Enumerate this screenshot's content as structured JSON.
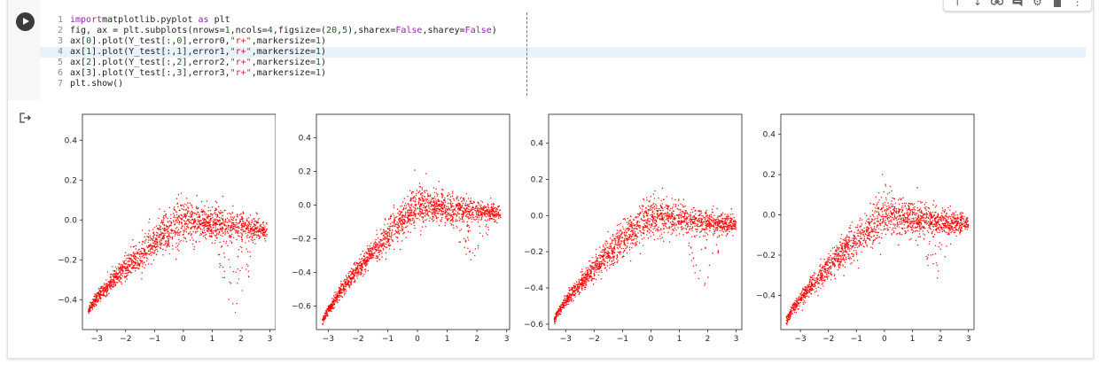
{
  "cell": {
    "code_lines": [
      {
        "n": "1",
        "parts": [
          [
            "kw",
            "import"
          ],
          [
            "",
            "matplotlib.pyplot "
          ],
          [
            "kw",
            "as"
          ],
          [
            "",
            " plt"
          ]
        ]
      },
      {
        "n": "2",
        "parts": [
          [
            "",
            "fig, ax = plt.subplots(nrows="
          ],
          [
            "num",
            "1"
          ],
          [
            "",
            ",ncols="
          ],
          [
            "num",
            "4"
          ],
          [
            "",
            ",figsize=("
          ],
          [
            "num",
            "20"
          ],
          [
            "",
            ","
          ],
          [
            "num",
            "5"
          ],
          [
            "",
            "),sharex="
          ],
          [
            "kw",
            "False"
          ],
          [
            "",
            ",sharey="
          ],
          [
            "kw",
            "False"
          ],
          [
            "",
            ")"
          ]
        ]
      },
      {
        "n": "3",
        "parts": [
          [
            "",
            "ax["
          ],
          [
            "num",
            "0"
          ],
          [
            "",
            "].plot(Y_test[:,"
          ],
          [
            "num",
            "0"
          ],
          [
            "",
            "],error0,"
          ],
          [
            "str",
            "\"r+\""
          ],
          [
            "",
            ",markersize="
          ],
          [
            "num",
            "1"
          ],
          [
            "",
            ")"
          ]
        ]
      },
      {
        "n": "4",
        "parts": [
          [
            "",
            "ax["
          ],
          [
            "num",
            "1"
          ],
          [
            "",
            "].plot(Y_test[:,"
          ],
          [
            "num",
            "1"
          ],
          [
            "",
            "],error1,"
          ],
          [
            "str",
            "\"r+\""
          ],
          [
            "",
            ",markersize="
          ],
          [
            "num",
            "1"
          ],
          [
            "",
            ")"
          ]
        ]
      },
      {
        "n": "5",
        "parts": [
          [
            "",
            "ax["
          ],
          [
            "num",
            "2"
          ],
          [
            "",
            "].plot(Y_test[:,"
          ],
          [
            "num",
            "2"
          ],
          [
            "",
            "],error2,"
          ],
          [
            "str",
            "\"r+\""
          ],
          [
            "",
            ",markersize="
          ],
          [
            "num",
            "1"
          ],
          [
            "",
            ")"
          ]
        ]
      },
      {
        "n": "6",
        "parts": [
          [
            "",
            "ax["
          ],
          [
            "num",
            "3"
          ],
          [
            "",
            "].plot(Y_test[:,"
          ],
          [
            "num",
            "3"
          ],
          [
            "",
            "],error3,"
          ],
          [
            "str",
            "\"r+\""
          ],
          [
            "",
            ",markersize="
          ],
          [
            "num",
            "1"
          ],
          [
            "",
            ")"
          ]
        ]
      },
      {
        "n": "7",
        "parts": [
          [
            "",
            "plt.show()"
          ]
        ]
      }
    ],
    "active_line": 3,
    "toolbar_icons": [
      "arrow-up-icon",
      "arrow-down-icon",
      "link-icon",
      "comment-icon",
      "gear-icon",
      "trash-icon",
      "more-icon"
    ],
    "run_icon": "play-icon",
    "output_icon": "output-arrow-icon"
  },
  "chart_data": [
    {
      "type": "scatter",
      "marker": "r+",
      "color": "#ff0000",
      "xlim": [
        -3.5,
        3.2
      ],
      "ylim": [
        -0.55,
        0.53
      ],
      "xticks": [
        -3,
        -2,
        -1,
        0,
        1,
        2,
        3
      ],
      "yticks": [
        -0.4,
        -0.2,
        0.0,
        0.2,
        0.4
      ],
      "ytick_labels": [
        "−0.4",
        "−0.2",
        "0.0",
        "0.2",
        "0.4"
      ],
      "xtick_labels": [
        "−3",
        "−2",
        "−1",
        "0",
        "1",
        "2",
        "3"
      ],
      "shape": {
        "x_start": -3.3,
        "x_end": 2.9,
        "peak": 0.0,
        "left_low": -0.46,
        "right_low": -0.52
      }
    },
    {
      "type": "scatter",
      "marker": "r+",
      "color": "#ff0000",
      "xlim": [
        -3.4,
        3.1
      ],
      "ylim": [
        -0.74,
        0.54
      ],
      "xticks": [
        -3,
        -2,
        -1,
        0,
        1,
        2,
        3
      ],
      "yticks": [
        -0.6,
        -0.4,
        -0.2,
        0.0,
        0.2,
        0.4
      ],
      "ytick_labels": [
        "−0.6",
        "−0.4",
        "−0.2",
        "0.0",
        "0.2",
        "0.4"
      ],
      "xtick_labels": [
        "−3",
        "−2",
        "−1",
        "0",
        "1",
        "2",
        "3"
      ],
      "shape": {
        "x_start": -3.2,
        "x_end": 2.8,
        "peak": 0.0,
        "left_low": -0.7,
        "right_low": -0.35
      }
    },
    {
      "type": "scatter",
      "marker": "r+",
      "color": "#ff0000",
      "xlim": [
        -3.6,
        3.2
      ],
      "ylim": [
        -0.63,
        0.56
      ],
      "xticks": [
        -3,
        -2,
        -1,
        0,
        1,
        2,
        3
      ],
      "yticks": [
        -0.6,
        -0.4,
        -0.2,
        0.0,
        0.2,
        0.4
      ],
      "ytick_labels": [
        "−0.6",
        "−0.4",
        "−0.2",
        "0.0",
        "0.2",
        "0.4"
      ],
      "xtick_labels": [
        "−3",
        "−2",
        "−1",
        "0",
        "1",
        "2",
        "3"
      ],
      "shape": {
        "x_start": -3.4,
        "x_end": 3.0,
        "peak": 0.0,
        "left_low": -0.58,
        "right_low": -0.44
      }
    },
    {
      "type": "scatter",
      "marker": "r+",
      "color": "#ff0000",
      "xlim": [
        -3.7,
        3.2
      ],
      "ylim": [
        -0.57,
        0.5
      ],
      "xticks": [
        -3,
        -2,
        -1,
        0,
        1,
        2,
        3
      ],
      "yticks": [
        -0.4,
        -0.2,
        0.0,
        0.2,
        0.4
      ],
      "ytick_labels": [
        "−0.4",
        "−0.2",
        "0.0",
        "0.2",
        "0.4"
      ],
      "xtick_labels": [
        "−3",
        "−2",
        "−1",
        "0",
        "1",
        "2",
        "3"
      ],
      "shape": {
        "x_start": -3.5,
        "x_end": 3.0,
        "peak": 0.0,
        "left_low": -0.53,
        "right_low": -0.35
      }
    }
  ]
}
